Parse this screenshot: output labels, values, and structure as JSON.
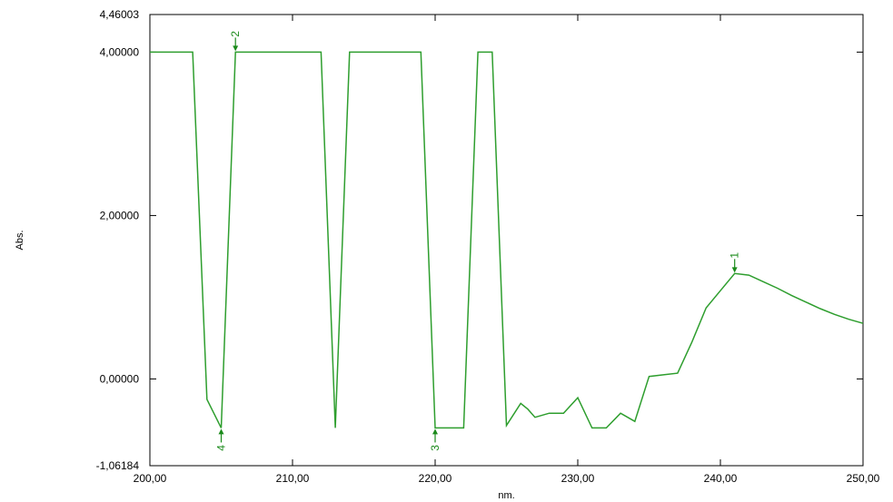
{
  "chart_data": {
    "type": "line",
    "xlabel": "nm.",
    "ylabel": "Abs.",
    "xlim": [
      200,
      250
    ],
    "ylim": [
      -1.06184,
      4.46003
    ],
    "x_ticks": [
      200,
      210,
      220,
      230,
      240,
      250
    ],
    "x_tick_labels": [
      "200,00",
      "210,00",
      "220,00",
      "230,00",
      "240,00",
      "250,00"
    ],
    "y_ticks": [
      -1.06184,
      0,
      2,
      4,
      4.46003
    ],
    "y_tick_labels": [
      "-1,06184",
      "0,00000",
      "2,00000",
      "4,00000",
      "4,46003"
    ],
    "line_color": "#2e9e2e",
    "marker_color": "#1a8a1a",
    "series": [
      {
        "x": [
          200,
          203,
          204,
          205,
          206,
          212,
          213,
          214,
          219,
          220,
          222,
          223,
          224,
          225,
          226,
          226.5,
          227,
          228,
          229,
          230,
          231,
          232,
          233,
          234,
          235,
          236,
          237,
          238,
          239,
          240,
          241,
          242,
          243,
          244,
          245,
          246,
          247,
          248,
          249,
          250
        ],
        "y": [
          4.0,
          4.0,
          -0.25,
          -0.6,
          4.0,
          4.0,
          -0.6,
          4.0,
          4.0,
          -0.6,
          -0.6,
          4.0,
          4.0,
          -0.57,
          -0.3,
          -0.37,
          -0.47,
          -0.42,
          -0.42,
          -0.23,
          -0.6,
          -0.6,
          -0.42,
          -0.52,
          0.03,
          0.05,
          0.07,
          0.45,
          0.87,
          1.08,
          1.29,
          1.27,
          1.19,
          1.11,
          1.02,
          0.94,
          0.86,
          0.79,
          0.73,
          0.68
        ]
      }
    ],
    "peaks": [
      {
        "label": "1",
        "x": 241,
        "y": 1.29,
        "position": "above"
      },
      {
        "label": "2",
        "x": 206,
        "y": 4.0,
        "position": "above"
      },
      {
        "label": "3",
        "x": 220,
        "y": -0.6,
        "position": "below"
      },
      {
        "label": "4",
        "x": 205,
        "y": -0.6,
        "position": "below"
      }
    ]
  }
}
